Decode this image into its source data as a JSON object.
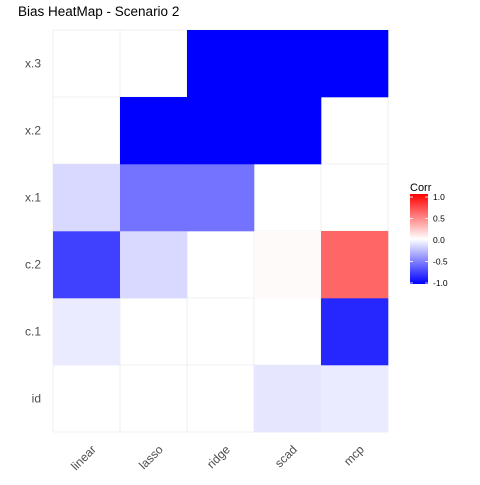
{
  "chart_data": {
    "type": "heatmap",
    "title": "Bias HeatMap - Scenario 2",
    "xlabel": "",
    "ylabel": "",
    "x_categories": [
      "linear",
      "lasso",
      "ridge",
      "scad",
      "mcp"
    ],
    "y_categories": [
      "id",
      "c.1",
      "c.2",
      "x.1",
      "x.2",
      "x.3"
    ],
    "values": [
      [
        0.0,
        0.0,
        0.0,
        -0.1,
        -0.08
      ],
      [
        -0.08,
        0.0,
        0.0,
        0.0,
        -0.85
      ],
      [
        -0.75,
        -0.15,
        0.0,
        0.02,
        0.6
      ],
      [
        -0.15,
        -0.55,
        -0.55,
        0.0,
        0.0
      ],
      [
        0.0,
        -1.0,
        -1.0,
        -1.0,
        0.0
      ],
      [
        0.0,
        0.0,
        -1.0,
        -1.0,
        -1.0
      ]
    ],
    "legend": {
      "title": "Corr",
      "ticks": [
        1.0,
        0.5,
        0.0,
        -0.5,
        -1.0
      ],
      "tick_labels": [
        "1.0",
        "0.5",
        "0.0",
        "-0.5",
        "-1.0"
      ],
      "range": [
        -1,
        1
      ],
      "placement": "right"
    },
    "colors": {
      "low": "#0000FF",
      "mid": "#FFFFFF",
      "high": "#FF0000",
      "grid": "#EBEBEB",
      "text": "#4D4D4D",
      "title": "#000000"
    },
    "grid": true
  }
}
